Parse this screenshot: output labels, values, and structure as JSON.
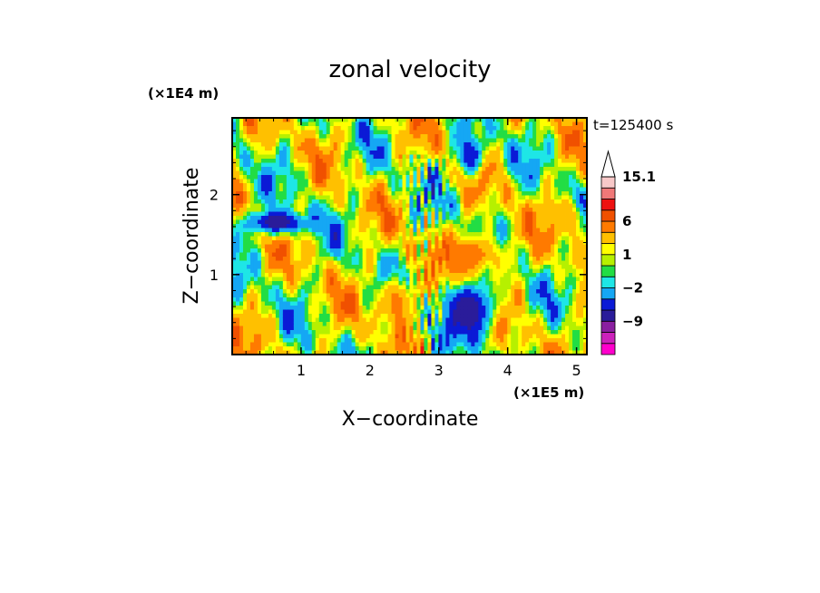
{
  "chart_data": {
    "type": "heatmap",
    "title": "zonal velocity",
    "xlabel": "X−coordinate",
    "ylabel": "Z−coordinate",
    "x_scale_label": "(×1E5 m)",
    "y_scale_label": "(×1E4 m)",
    "time_label": "t=125400 s",
    "xlim": [
      0,
      5.15
    ],
    "ylim": [
      0,
      2.96
    ],
    "x_ticks": [
      {
        "value": 1,
        "label": "1"
      },
      {
        "value": 2,
        "label": "2"
      },
      {
        "value": 3,
        "label": "3"
      },
      {
        "value": 4,
        "label": "4"
      },
      {
        "value": 5,
        "label": "5"
      }
    ],
    "y_ticks": [
      {
        "value": 1,
        "label": "1"
      },
      {
        "value": 2,
        "label": "2"
      }
    ],
    "contour_levels": [
      -19,
      -15,
      -12,
      -9,
      -6,
      -4,
      -2,
      -1,
      0,
      1,
      2,
      4,
      6,
      8,
      10,
      12.5,
      15.1
    ],
    "colorbar_labels": [
      {
        "value": 15.1,
        "label": "15.1"
      },
      {
        "value": 6,
        "label": "6"
      },
      {
        "value": 1,
        "label": "1"
      },
      {
        "value": -2,
        "label": "−2"
      },
      {
        "value": -9,
        "label": "−9"
      }
    ],
    "colormap": [
      {
        "min": -19,
        "max": -15,
        "color": "#ff00cc"
      },
      {
        "min": -15,
        "max": -12,
        "color": "#cc22bb"
      },
      {
        "min": -12,
        "max": -9,
        "color": "#8a1fa0"
      },
      {
        "min": -9,
        "max": -6,
        "color": "#2a1c9a"
      },
      {
        "min": -6,
        "max": -4,
        "color": "#0b1ad6"
      },
      {
        "min": -4,
        "max": -2,
        "color": "#15a7f4"
      },
      {
        "min": -2,
        "max": -1,
        "color": "#1ee6e6"
      },
      {
        "min": -1,
        "max": 0,
        "color": "#22dd44"
      },
      {
        "min": 0,
        "max": 1,
        "color": "#b6f000"
      },
      {
        "min": 1,
        "max": 2,
        "color": "#ffff00"
      },
      {
        "min": 2,
        "max": 4,
        "color": "#ffc000"
      },
      {
        "min": 4,
        "max": 6,
        "color": "#ff7a00"
      },
      {
        "min": 6,
        "max": 8,
        "color": "#f05000"
      },
      {
        "min": 8,
        "max": 10,
        "color": "#ee1111"
      },
      {
        "min": 10,
        "max": 12.5,
        "color": "#f07878"
      },
      {
        "min": 12.5,
        "max": 15.1,
        "color": "#f8c8c8"
      }
    ],
    "overflow_color": "#ffffff",
    "features": [
      {
        "x": 3.45,
        "z": 0.55,
        "value": -8,
        "rx": 0.35,
        "rz": 0.35
      },
      {
        "x": 0.65,
        "z": 1.65,
        "value": -8,
        "rx": 0.45,
        "rz": 0.14
      },
      {
        "x": 3.45,
        "z": 1.25,
        "value": 6,
        "rx": 0.45,
        "rz": 0.25
      },
      {
        "x": 2.4,
        "z": 0.65,
        "value": 5,
        "rx": 0.25,
        "rz": 0.3
      },
      {
        "x": 3.45,
        "z": 2.5,
        "value": -6,
        "rx": 0.2,
        "rz": 0.25
      },
      {
        "x": 4.8,
        "z": 1.7,
        "value": 4,
        "rx": 0.3,
        "rz": 0.2
      }
    ]
  }
}
